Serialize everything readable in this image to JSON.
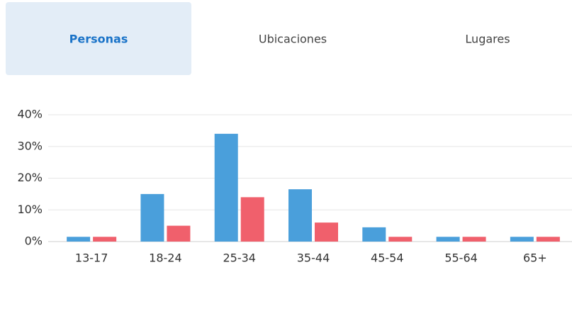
{
  "tabs": [
    {
      "label": "Personas",
      "active": true
    },
    {
      "label": "Ubicaciones",
      "active": false
    },
    {
      "label": "Lugares",
      "active": false
    }
  ],
  "chart_data": {
    "type": "bar",
    "categories": [
      "13-17",
      "18-24",
      "25-34",
      "35-44",
      "45-54",
      "55-64",
      "65+"
    ],
    "series": [
      {
        "color": "#4a9fdb",
        "values": [
          1.5,
          15,
          34,
          16.5,
          4.5,
          1.5,
          1.5
        ]
      },
      {
        "color": "#f0606c",
        "values": [
          1.5,
          5,
          14,
          6,
          1.5,
          1.5,
          1.5
        ]
      }
    ],
    "ylim": [
      0,
      40
    ],
    "yticks": [
      {
        "value": 0,
        "label": "0%"
      },
      {
        "value": 10,
        "label": "10%"
      },
      {
        "value": 20,
        "label": "20%"
      },
      {
        "value": 30,
        "label": "30%"
      },
      {
        "value": 40,
        "label": "40%"
      }
    ],
    "grid": true
  }
}
